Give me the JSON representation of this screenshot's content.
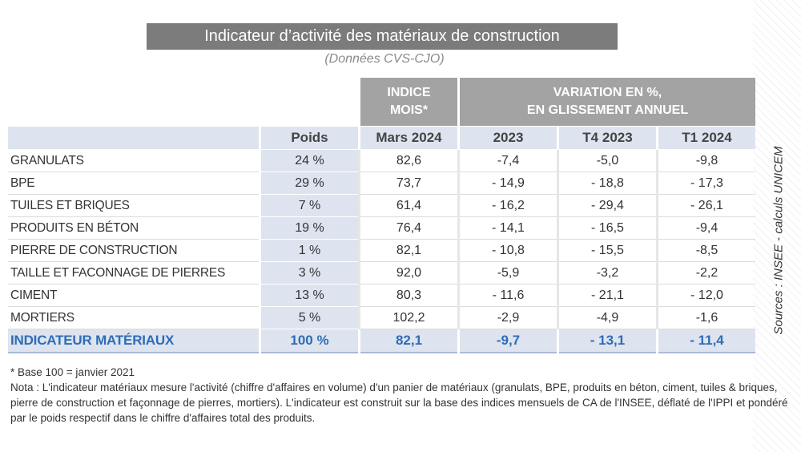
{
  "header": {
    "title": "Indicateur d’activité des matériaux de construction",
    "subtitle": "(Données CVS-CJO)"
  },
  "table": {
    "groups": [
      {
        "lines": [
          "INDICE",
          "MOIS*"
        ]
      },
      {
        "lines": [
          "VARIATION EN %,",
          "EN GLISSEMENT ANNUEL"
        ]
      }
    ],
    "columns": [
      "Poids",
      "Mars 2024",
      "2023",
      "T4 2023",
      "T1 2024"
    ],
    "rows": [
      [
        "GRANULATS",
        "24 %",
        "82,6",
        "-7,4",
        "-5,0",
        "-9,8"
      ],
      [
        "BPE",
        "29 %",
        "73,7",
        "- 14,9",
        "- 18,8",
        "- 17,3"
      ],
      [
        "TUILES ET BRIQUES",
        "7 %",
        "61,4",
        "- 16,2",
        "- 29,4",
        "- 26,1"
      ],
      [
        "PRODUITS EN BÉTON",
        "19 %",
        "76,4",
        "- 14,1",
        "- 16,5",
        "-9,4"
      ],
      [
        "PIERRE DE CONSTRUCTION",
        "1 %",
        "82,1",
        "- 10,8",
        "- 15,5",
        "-8,5"
      ],
      [
        "TAILLE ET FACONNAGE DE PIERRES",
        "3 %",
        "92,0",
        "-5,9",
        "-3,2",
        "-2,2"
      ],
      [
        "CIMENT",
        "13 %",
        "80,3",
        "- 11,6",
        "- 21,1",
        "- 12,0"
      ],
      [
        "MORTIERS",
        "5 %",
        "102,2",
        "-2,9",
        "-4,9",
        "-1,6"
      ]
    ],
    "total": [
      "INDICATEUR MATÉRIAUX",
      "100 %",
      "82,1",
      "-9,7",
      "- 13,1",
      "- 11,4"
    ]
  },
  "notes": {
    "footnote": "* Base 100 = janvier 2021",
    "nota": "Nota : L'indicateur matériaux mesure l'activité (chiffre d'affaires en volume) d'un panier de matériaux (granulats, BPE, produits en béton, ciment, tuiles & briques, pierre de construction et façonnage de pierres, mortiers). L'indicateur est construit sur la base des indices mensuels de CA de l'INSEE, déflaté de l'IPPI et pondéré par le poids respectif dans le chiffre d'affaires total des produits."
  },
  "source": "Sources : INSEE - calculs UNICEM"
}
